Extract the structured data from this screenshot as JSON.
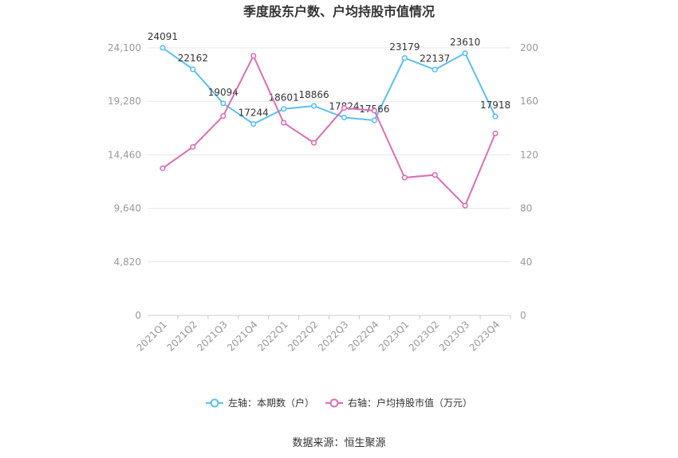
{
  "chart_data": {
    "type": "line",
    "title": "季度股东户数、户均持股市值情况",
    "categories": [
      "2021Q1",
      "2021Q2",
      "2021Q3",
      "2021Q4",
      "2022Q1",
      "2022Q2",
      "2022Q3",
      "2022Q4",
      "2023Q1",
      "2023Q2",
      "2023Q3",
      "2023Q4"
    ],
    "y_left": {
      "ticks": [
        "0",
        "4,820",
        "9,640",
        "14,460",
        "19,280",
        "24,100"
      ],
      "range": [
        0,
        24100
      ]
    },
    "y_right": {
      "ticks": [
        "0",
        "40",
        "80",
        "120",
        "160",
        "200"
      ],
      "range": [
        0,
        200
      ]
    },
    "series": [
      {
        "name": "左轴：本期数（户）",
        "axis": "left",
        "color": "#5bc0f0",
        "values": [
          24091,
          22162,
          19094,
          17244,
          18601,
          18866,
          17824,
          17566,
          23179,
          22137,
          23610,
          17918
        ],
        "labels": [
          "24091",
          "22162",
          "19094",
          "17244",
          "18601",
          "18866",
          "17824",
          "17566",
          "23179",
          "22137",
          "23610",
          "17918"
        ]
      },
      {
        "name": "右轴：户均持股市值（万元）",
        "axis": "right",
        "color": "#d96fb5",
        "values": [
          110,
          126,
          149,
          194,
          144,
          129,
          155,
          153,
          103,
          105,
          82,
          136
        ]
      }
    ],
    "grid": true,
    "legend_position": "bottom"
  },
  "source": "数据来源：恒生聚源"
}
